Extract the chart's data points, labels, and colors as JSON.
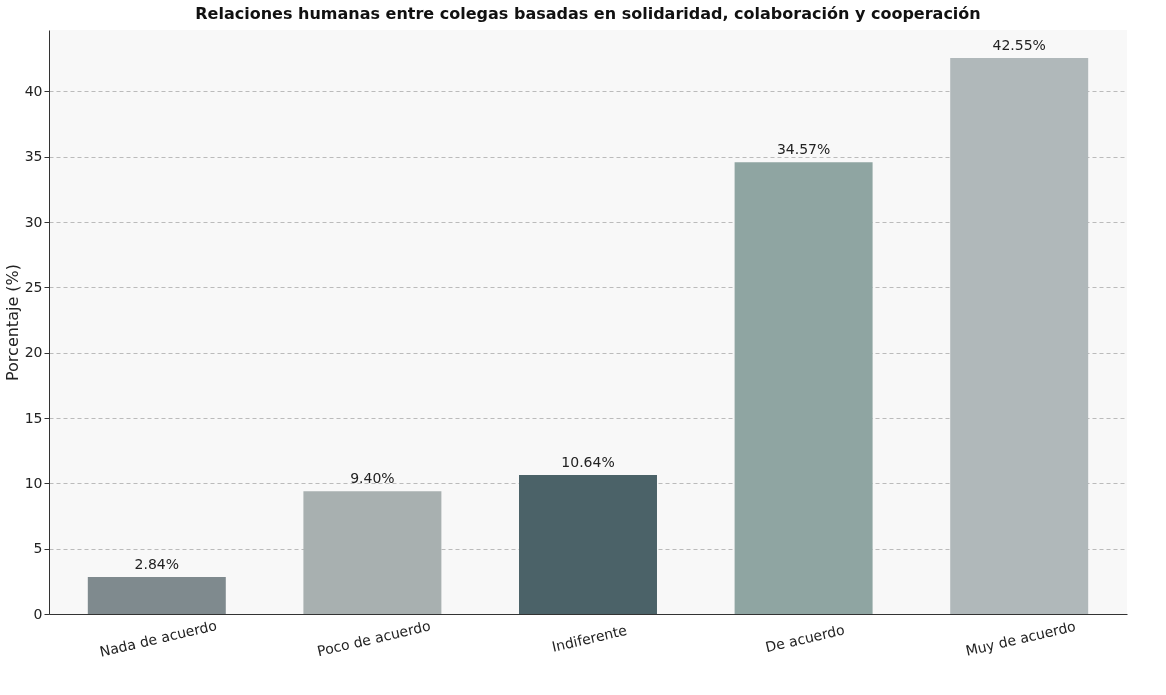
{
  "chart_data": {
    "type": "bar",
    "title": "Relaciones humanas entre colegas basadas en solidaridad, colaboración y cooperación",
    "ylabel": "Porcentaje (%)",
    "categories": [
      "Nada de acuerdo",
      "Poco de acuerdo",
      "Indiferente",
      "De acuerdo",
      "Muy de acuerdo"
    ],
    "values": [
      2.84,
      9.4,
      10.64,
      34.57,
      42.55
    ],
    "value_labels": [
      "2.84%",
      "9.40%",
      "10.64%",
      "34.57%",
      "42.55%"
    ],
    "colors": [
      "#7f8a8e",
      "#a8b0b0",
      "#4b6268",
      "#8fa5a2",
      "#b0b8ba"
    ],
    "ylim": [
      0,
      44.7
    ],
    "yticks": [
      0,
      5,
      10,
      15,
      20,
      25,
      30,
      35,
      40
    ],
    "grid": "y",
    "legend": false
  }
}
